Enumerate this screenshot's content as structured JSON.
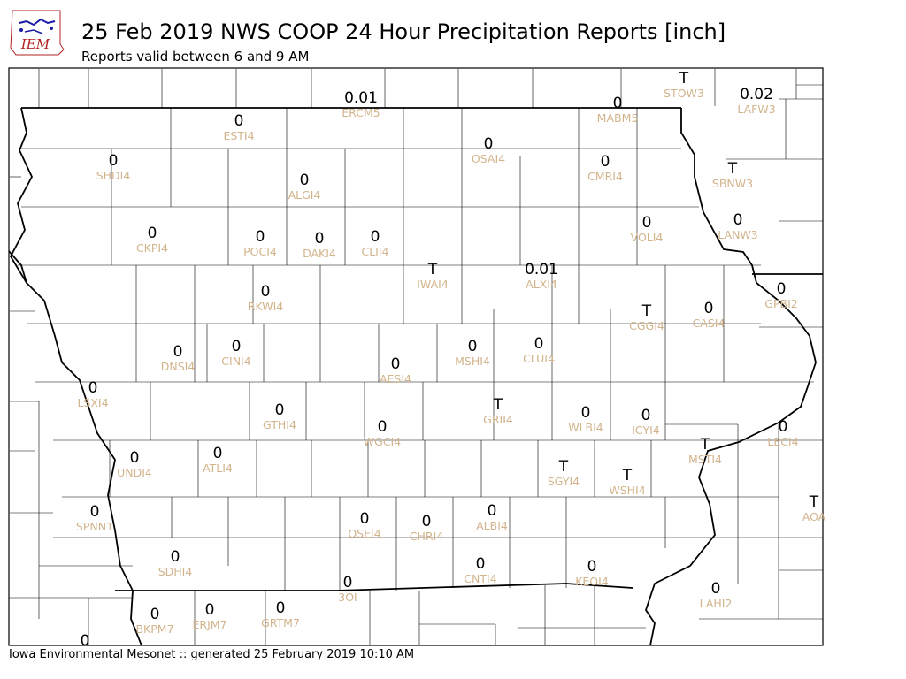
{
  "header": {
    "title": "25 Feb 2019 NWS COOP 24 Hour Precipitation Reports [inch]",
    "subtitle": "Reports valid between 6 and 9 AM",
    "logo_text": "IEM"
  },
  "footer": {
    "text": "Iowa Environmental Mesonet :: generated 25 February 2019 10:10 AM"
  },
  "colors": {
    "value": "#000000",
    "station": "#d2b48c",
    "border": "#000000",
    "logo": "#1a1aa6",
    "logo_text": "#b22222"
  },
  "stations": [
    {
      "id": "ERCM5",
      "value": "0.01"
    },
    {
      "id": "MABM5",
      "value": "0"
    },
    {
      "id": "STOW3",
      "value": "T"
    },
    {
      "id": "LAFW3",
      "value": "0.02"
    },
    {
      "id": "ESTI4",
      "value": "0"
    },
    {
      "id": "SHDI4",
      "value": "0"
    },
    {
      "id": "ALGI4",
      "value": "0"
    },
    {
      "id": "OSAI4",
      "value": "0"
    },
    {
      "id": "CMRI4",
      "value": "0"
    },
    {
      "id": "SBNW3",
      "value": "T"
    },
    {
      "id": "CKPI4",
      "value": "0"
    },
    {
      "id": "POCI4",
      "value": "0"
    },
    {
      "id": "DAKI4",
      "value": "0"
    },
    {
      "id": "CLII4",
      "value": "0"
    },
    {
      "id": "VOLI4",
      "value": "0"
    },
    {
      "id": "LANW3",
      "value": "0"
    },
    {
      "id": "IWAI4",
      "value": "T"
    },
    {
      "id": "ALXI4",
      "value": "0.01"
    },
    {
      "id": "RKWI4",
      "value": "0"
    },
    {
      "id": "GPBI2",
      "value": "0"
    },
    {
      "id": "CGGI4",
      "value": "T"
    },
    {
      "id": "CASI4",
      "value": "0"
    },
    {
      "id": "DNSI4",
      "value": "0"
    },
    {
      "id": "CINI4",
      "value": "0"
    },
    {
      "id": "MSHI4",
      "value": "0"
    },
    {
      "id": "CLUI4",
      "value": "0"
    },
    {
      "id": "AESI4",
      "value": "0"
    },
    {
      "id": "LSXI4",
      "value": "0"
    },
    {
      "id": "GTHI4",
      "value": "0"
    },
    {
      "id": "WGCI4",
      "value": "0"
    },
    {
      "id": "GRII4",
      "value": "T"
    },
    {
      "id": "WLBI4",
      "value": "0"
    },
    {
      "id": "ICYI4",
      "value": "0"
    },
    {
      "id": "LECI4",
      "value": "0"
    },
    {
      "id": "UNDI4",
      "value": "0"
    },
    {
      "id": "ATLI4",
      "value": "0"
    },
    {
      "id": "MSTI4",
      "value": "T"
    },
    {
      "id": "SGYI4",
      "value": "T"
    },
    {
      "id": "WSHI4",
      "value": "T"
    },
    {
      "id": "AOA",
      "value": "T"
    },
    {
      "id": "SPNN1",
      "value": "0"
    },
    {
      "id": "OSEI4",
      "value": "0"
    },
    {
      "id": "CHRI4",
      "value": "0"
    },
    {
      "id": "ALBI4",
      "value": "0"
    },
    {
      "id": "SDHI4",
      "value": "0"
    },
    {
      "id": "CNTI4",
      "value": "0"
    },
    {
      "id": "KEOI4",
      "value": "0"
    },
    {
      "id": "3OI",
      "value": "0"
    },
    {
      "id": "LAHI2",
      "value": "0"
    },
    {
      "id": "BKPM7",
      "value": "0"
    },
    {
      "id": "ERJM7",
      "value": "0"
    },
    {
      "id": "GRTM7",
      "value": "0"
    },
    {
      "id": "",
      "value": "0"
    }
  ]
}
